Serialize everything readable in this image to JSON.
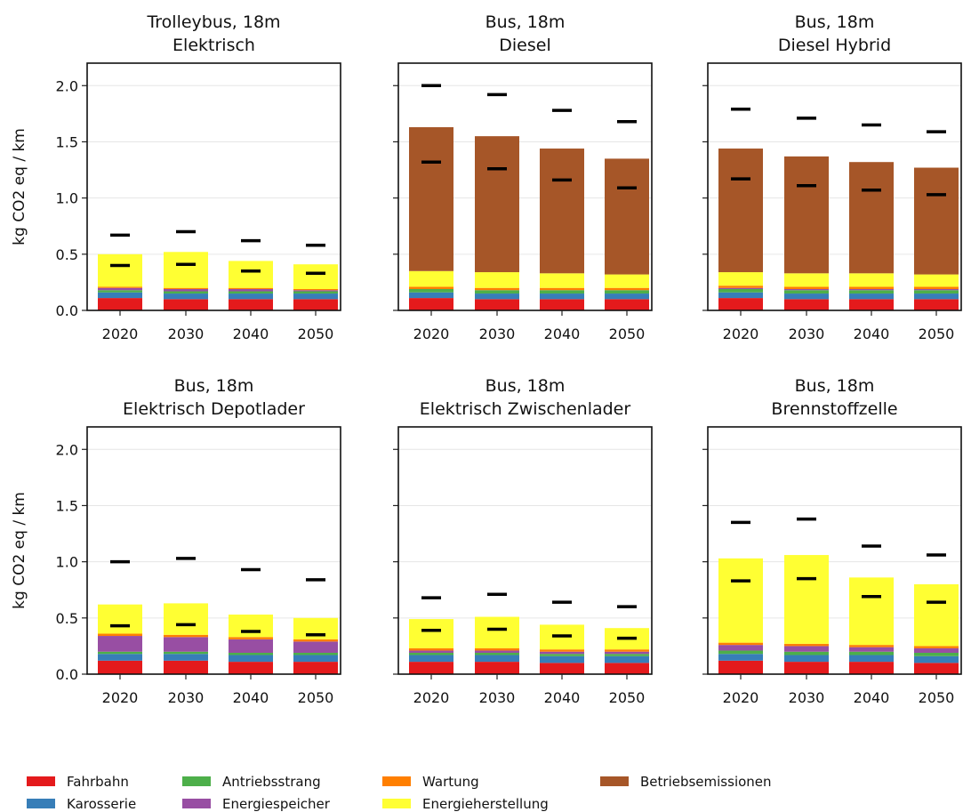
{
  "chart_data": {
    "type": "bar",
    "stacked": true,
    "ylabel": "kg CO2 eq / km",
    "ylim": [
      0,
      2.2
    ],
    "yticks": [
      0.0,
      0.5,
      1.0,
      1.5,
      2.0
    ],
    "ytick_labels": [
      "0.0",
      "0.5",
      "1.0",
      "1.5",
      "2.0"
    ],
    "grid": "horizontal",
    "categories": [
      "2020",
      "2030",
      "2040",
      "2050"
    ],
    "legend_position": "bottom",
    "components": [
      {
        "key": "fahrbahn",
        "name": "Fahrbahn",
        "color": "#e41a1c"
      },
      {
        "key": "karosserie",
        "name": "Karosserie",
        "color": "#377eb8"
      },
      {
        "key": "antriebsstrang",
        "name": "Antriebsstrang",
        "color": "#4daf4a"
      },
      {
        "key": "energiespeicher",
        "name": "Energiespeicher",
        "color": "#984ea3"
      },
      {
        "key": "wartung",
        "name": "Wartung",
        "color": "#ff7f00"
      },
      {
        "key": "energieherstellung",
        "name": "Energieherstellung",
        "color": "#ffff33"
      },
      {
        "key": "betriebsemissionen",
        "name": "Betriebsemissionen",
        "color": "#a65628"
      }
    ],
    "panels": [
      {
        "title_line1": "Trolleybus, 18m",
        "title_line2": "Elektrisch",
        "stacks": [
          {
            "fahrbahn": 0.11,
            "karosserie": 0.05,
            "antriebsstrang": 0.02,
            "energiespeicher": 0.02,
            "wartung": 0.01,
            "energieherstellung": 0.29,
            "betriebsemissionen": 0
          },
          {
            "fahrbahn": 0.1,
            "karosserie": 0.05,
            "antriebsstrang": 0.02,
            "energiespeicher": 0.02,
            "wartung": 0.01,
            "energieherstellung": 0.32,
            "betriebsemissionen": 0
          },
          {
            "fahrbahn": 0.1,
            "karosserie": 0.05,
            "antriebsstrang": 0.02,
            "energiespeicher": 0.02,
            "wartung": 0.01,
            "energieherstellung": 0.24,
            "betriebsemissionen": 0
          },
          {
            "fahrbahn": 0.1,
            "karosserie": 0.05,
            "antriebsstrang": 0.02,
            "energiespeicher": 0.01,
            "wartung": 0.01,
            "energieherstellung": 0.22,
            "betriebsemissionen": 0
          }
        ],
        "markers_low": [
          0.4,
          0.41,
          0.35,
          0.33
        ],
        "markers_high": [
          0.67,
          0.7,
          0.62,
          0.58
        ]
      },
      {
        "title_line1": "Bus, 18m",
        "title_line2": "Diesel",
        "stacks": [
          {
            "fahrbahn": 0.11,
            "karosserie": 0.05,
            "antriebsstrang": 0.03,
            "energiespeicher": 0,
            "wartung": 0.02,
            "energieherstellung": 0.14,
            "betriebsemissionen": 1.28
          },
          {
            "fahrbahn": 0.1,
            "karosserie": 0.05,
            "antriebsstrang": 0.03,
            "energiespeicher": 0,
            "wartung": 0.02,
            "energieherstellung": 0.14,
            "betriebsemissionen": 1.21
          },
          {
            "fahrbahn": 0.1,
            "karosserie": 0.05,
            "antriebsstrang": 0.03,
            "energiespeicher": 0,
            "wartung": 0.02,
            "energieherstellung": 0.13,
            "betriebsemissionen": 1.11
          },
          {
            "fahrbahn": 0.1,
            "karosserie": 0.05,
            "antriebsstrang": 0.03,
            "energiespeicher": 0,
            "wartung": 0.02,
            "energieherstellung": 0.12,
            "betriebsemissionen": 1.03
          }
        ],
        "markers_low": [
          1.32,
          1.26,
          1.16,
          1.09
        ],
        "markers_high": [
          2.0,
          1.92,
          1.78,
          1.68
        ]
      },
      {
        "title_line1": "Bus, 18m",
        "title_line2": "Diesel Hybrid",
        "stacks": [
          {
            "fahrbahn": 0.11,
            "karosserie": 0.05,
            "antriebsstrang": 0.03,
            "energiespeicher": 0.01,
            "wartung": 0.02,
            "energieherstellung": 0.12,
            "betriebsemissionen": 1.1
          },
          {
            "fahrbahn": 0.1,
            "karosserie": 0.05,
            "antriebsstrang": 0.03,
            "energiespeicher": 0.01,
            "wartung": 0.02,
            "energieherstellung": 0.12,
            "betriebsemissionen": 1.04
          },
          {
            "fahrbahn": 0.1,
            "karosserie": 0.05,
            "antriebsstrang": 0.03,
            "energiespeicher": 0.01,
            "wartung": 0.02,
            "energieherstellung": 0.12,
            "betriebsemissionen": 0.99
          },
          {
            "fahrbahn": 0.1,
            "karosserie": 0.05,
            "antriebsstrang": 0.03,
            "energiespeicher": 0.01,
            "wartung": 0.02,
            "energieherstellung": 0.11,
            "betriebsemissionen": 0.95
          }
        ],
        "markers_low": [
          1.17,
          1.11,
          1.07,
          1.03
        ],
        "markers_high": [
          1.79,
          1.71,
          1.65,
          1.59
        ]
      },
      {
        "title_line1": "Bus, 18m",
        "title_line2": "Elektrisch Depotlader",
        "stacks": [
          {
            "fahrbahn": 0.12,
            "karosserie": 0.06,
            "antriebsstrang": 0.02,
            "energiespeicher": 0.14,
            "wartung": 0.02,
            "energieherstellung": 0.26,
            "betriebsemissionen": 0
          },
          {
            "fahrbahn": 0.12,
            "karosserie": 0.06,
            "antriebsstrang": 0.02,
            "energiespeicher": 0.13,
            "wartung": 0.02,
            "energieherstellung": 0.28,
            "betriebsemissionen": 0
          },
          {
            "fahrbahn": 0.11,
            "karosserie": 0.06,
            "antriebsstrang": 0.02,
            "energiespeicher": 0.12,
            "wartung": 0.02,
            "energieherstellung": 0.2,
            "betriebsemissionen": 0
          },
          {
            "fahrbahn": 0.11,
            "karosserie": 0.06,
            "antriebsstrang": 0.02,
            "energiespeicher": 0.1,
            "wartung": 0.02,
            "energieherstellung": 0.19,
            "betriebsemissionen": 0
          }
        ],
        "markers_low": [
          0.43,
          0.44,
          0.38,
          0.35
        ],
        "markers_high": [
          1.0,
          1.03,
          0.93,
          0.84
        ]
      },
      {
        "title_line1": "Bus, 18m",
        "title_line2": "Elektrisch Zwischenlader",
        "stacks": [
          {
            "fahrbahn": 0.11,
            "karosserie": 0.06,
            "antriebsstrang": 0.02,
            "energiespeicher": 0.02,
            "wartung": 0.02,
            "energieherstellung": 0.26,
            "betriebsemissionen": 0
          },
          {
            "fahrbahn": 0.11,
            "karosserie": 0.06,
            "antriebsstrang": 0.02,
            "energiespeicher": 0.02,
            "wartung": 0.02,
            "energieherstellung": 0.28,
            "betriebsemissionen": 0
          },
          {
            "fahrbahn": 0.1,
            "karosserie": 0.06,
            "antriebsstrang": 0.02,
            "energiespeicher": 0.02,
            "wartung": 0.02,
            "energieherstellung": 0.22,
            "betriebsemissionen": 0
          },
          {
            "fahrbahn": 0.1,
            "karosserie": 0.06,
            "antriebsstrang": 0.02,
            "energiespeicher": 0.02,
            "wartung": 0.02,
            "energieherstellung": 0.19,
            "betriebsemissionen": 0
          }
        ],
        "markers_low": [
          0.39,
          0.4,
          0.34,
          0.32
        ],
        "markers_high": [
          0.68,
          0.71,
          0.64,
          0.6
        ]
      },
      {
        "title_line1": "Bus, 18m",
        "title_line2": "Brennstoffzelle",
        "stacks": [
          {
            "fahrbahn": 0.12,
            "karosserie": 0.06,
            "antriebsstrang": 0.03,
            "energiespeicher": 0.05,
            "wartung": 0.02,
            "energieherstellung": 0.75,
            "betriebsemissionen": 0
          },
          {
            "fahrbahn": 0.11,
            "karosserie": 0.06,
            "antriebsstrang": 0.03,
            "energiespeicher": 0.05,
            "wartung": 0.02,
            "energieherstellung": 0.79,
            "betriebsemissionen": 0
          },
          {
            "fahrbahn": 0.11,
            "karosserie": 0.06,
            "antriebsstrang": 0.03,
            "energiespeicher": 0.04,
            "wartung": 0.02,
            "energieherstellung": 0.6,
            "betriebsemissionen": 0
          },
          {
            "fahrbahn": 0.1,
            "karosserie": 0.06,
            "antriebsstrang": 0.03,
            "energiespeicher": 0.04,
            "wartung": 0.02,
            "energieherstellung": 0.55,
            "betriebsemissionen": 0
          }
        ],
        "markers_low": [
          0.83,
          0.85,
          0.69,
          0.64
        ],
        "markers_high": [
          1.35,
          1.38,
          1.14,
          1.06
        ]
      }
    ]
  }
}
